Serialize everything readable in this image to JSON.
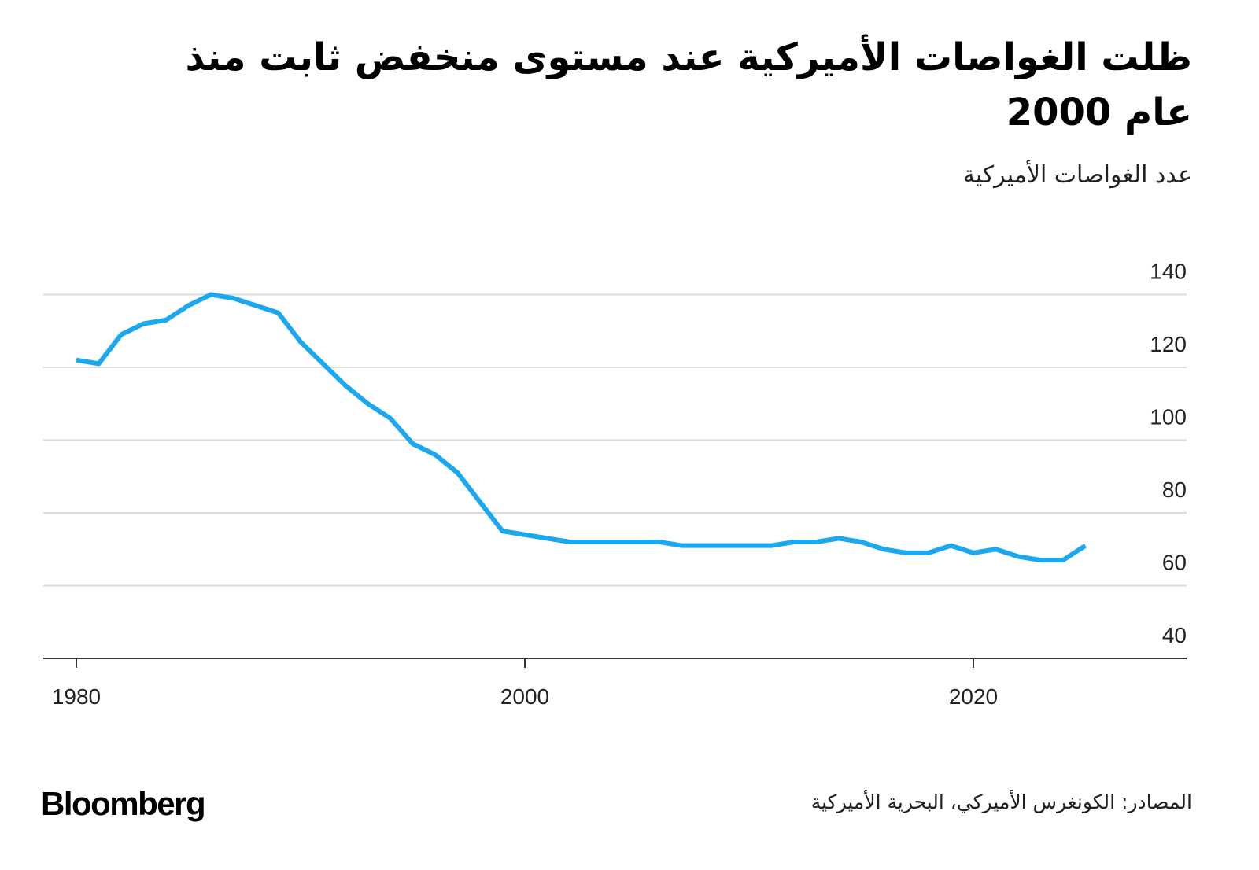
{
  "title": "ظلت الغواصات الأميركية عند مستوى منخفض ثابت منذ عام 2000",
  "subtitle": "عدد الغواصات الأميركية",
  "source": "المصادر: الكونغرس الأميركي، البحرية الأميركية",
  "logo": "Bloomberg",
  "chart_data": {
    "type": "line",
    "title": "ظلت الغواصات الأميركية عند مستوى منخفض ثابت منذ عام 2000",
    "ylabel": "عدد الغواصات الأميركية",
    "xlim": [
      1980,
      2025
    ],
    "ylim": [
      40,
      140
    ],
    "yticks": [
      40,
      60,
      80,
      100,
      120,
      140
    ],
    "xticks": [
      1980,
      2000,
      2020
    ],
    "y_axis_position": "right",
    "grid": true,
    "line_color": "#1ba8ee",
    "x": [
      1980,
      1981,
      1982,
      1983,
      1984,
      1985,
      1986,
      1987,
      1988,
      1989,
      1990,
      1991,
      1992,
      1993,
      1994,
      1995,
      1996,
      1997,
      1998,
      1999,
      2000,
      2001,
      2002,
      2003,
      2004,
      2005,
      2006,
      2007,
      2008,
      2009,
      2010,
      2011,
      2012,
      2013,
      2014,
      2015,
      2016,
      2017,
      2018,
      2019,
      2020,
      2021,
      2022,
      2023,
      2024,
      2025
    ],
    "values": [
      122,
      121,
      129,
      132,
      133,
      137,
      140,
      139,
      137,
      135,
      127,
      121,
      115,
      110,
      106,
      99,
      96,
      91,
      83,
      75,
      74,
      73,
      72,
      72,
      72,
      72,
      72,
      71,
      71,
      71,
      71,
      71,
      72,
      72,
      73,
      72,
      70,
      69,
      69,
      71,
      69,
      70,
      68,
      67,
      67,
      71
    ]
  }
}
